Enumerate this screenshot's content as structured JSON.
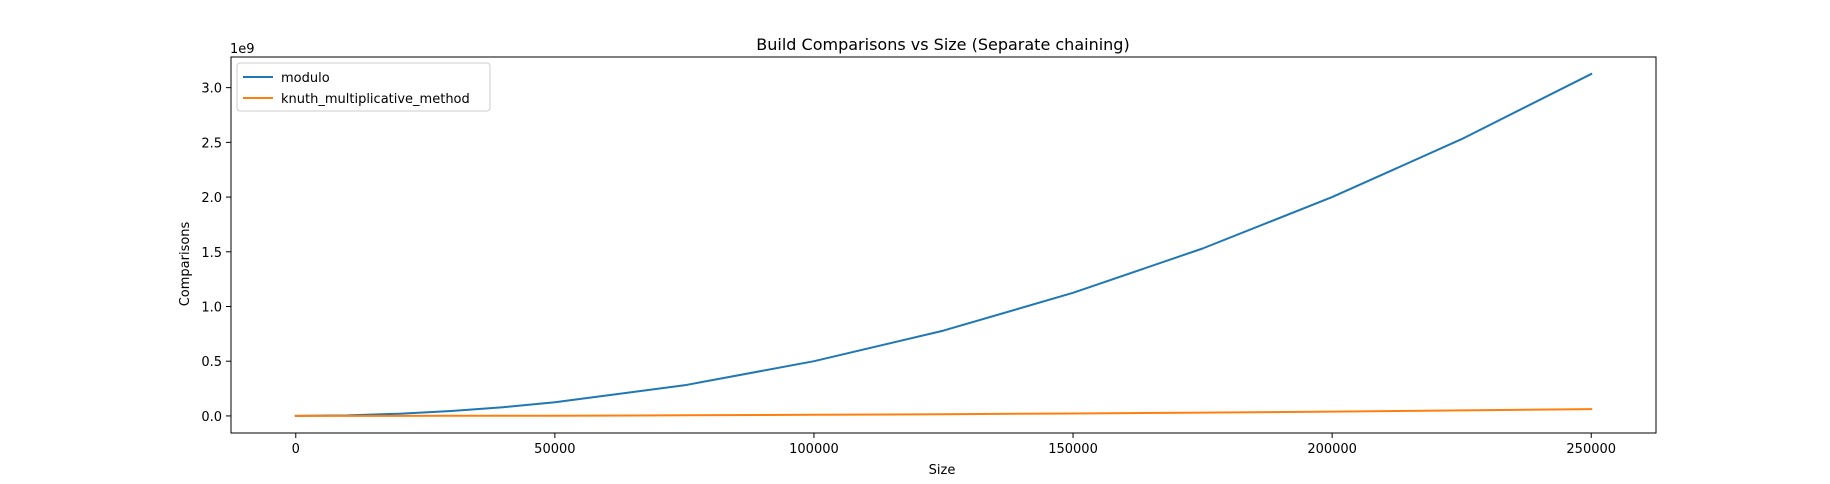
{
  "chart_data": {
    "type": "line",
    "title": "Build Comparisons vs Size (Separate chaining)",
    "xlabel": "Size",
    "ylabel": "Comparisons",
    "y_offset_label": "1e9",
    "x_ticks": [
      0,
      50000,
      100000,
      150000,
      200000,
      250000
    ],
    "x_tick_labels": [
      "0",
      "50000",
      "100000",
      "150000",
      "200000",
      "250000"
    ],
    "y_ticks": [
      0.0,
      0.5,
      1.0,
      1.5,
      2.0,
      2.5,
      3.0
    ],
    "y_tick_labels": [
      "0.0",
      "0.5",
      "1.0",
      "1.5",
      "2.0",
      "2.5",
      "3.0"
    ],
    "xlim": [
      -12500,
      262500
    ],
    "ylim": [
      -0.156,
      3.28
    ],
    "y_scale": 1000000000.0,
    "grid": false,
    "legend_position": "upper-left",
    "series": [
      {
        "name": "modulo",
        "color": "#1f77b4",
        "x": [
          0,
          10000,
          20000,
          30000,
          40000,
          50000,
          75000,
          100000,
          125000,
          150000,
          175000,
          200000,
          225000,
          250000
        ],
        "y": [
          0.0,
          0.005,
          0.02,
          0.045,
          0.08,
          0.125,
          0.28,
          0.5,
          0.78,
          1.125,
          1.53,
          2.0,
          2.53,
          3.125
        ]
      },
      {
        "name": "knuth_multiplicative_method",
        "color": "#ff7f0e",
        "x": [
          0,
          10000,
          20000,
          30000,
          40000,
          50000,
          75000,
          100000,
          125000,
          150000,
          175000,
          200000,
          225000,
          250000
        ],
        "y": [
          0.0,
          0.0001,
          0.0004,
          0.0009,
          0.0016,
          0.0025,
          0.0056,
          0.01,
          0.0156,
          0.0225,
          0.0306,
          0.04,
          0.0506,
          0.0625
        ]
      }
    ]
  }
}
